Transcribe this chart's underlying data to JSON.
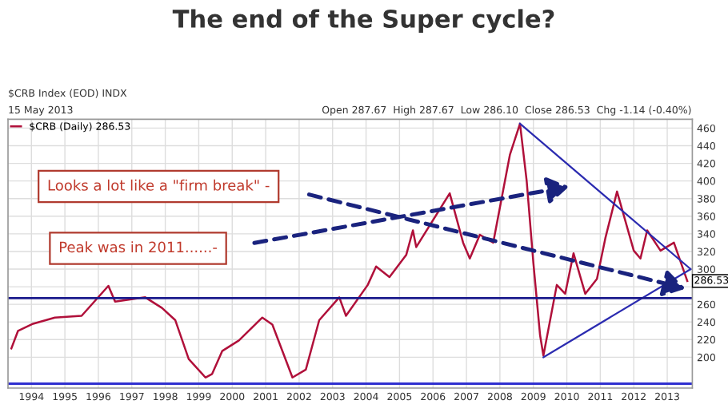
{
  "chart_data": {
    "type": "line",
    "title": "The end of the Super cycle?",
    "subtitle": "$CRB Index (EOD) INDX",
    "annotations": [
      "15 May 2013",
      "Open 287.67  High 287.67  Low 286.10  Close 286.53  Chg -1.14 (-0.40%)",
      "Looks a lot like a \"firm break\" -",
      "Peak was in 2011......-",
      {
        "text": "286.53",
        "x": 2013.6,
        "y": 286.53
      }
    ],
    "series": [
      {
        "name": "$CRB (Daily) 286.53",
        "color": "#b0103a",
        "x": [
          1993.4,
          1993.6,
          1994.05,
          1994.7,
          1995.5,
          1996.3,
          1996.5,
          1997.4,
          1997.9,
          1998.3,
          1998.7,
          1999.2,
          1999.4,
          1999.7,
          2000.2,
          2000.9,
          2001.2,
          2001.8,
          2002.2,
          2002.6,
          2003.2,
          2003.4,
          2004.05,
          2004.3,
          2004.7,
          2005.2,
          2005.4,
          2005.5,
          2006.5,
          2006.9,
          2007.1,
          2007.4,
          2007.8,
          2008.3,
          2008.6,
          2008.8,
          2009.0,
          2009.2,
          2009.3,
          2009.7,
          2009.95,
          2010.2,
          2010.55,
          2010.9,
          2011.15,
          2011.5,
          2012.0,
          2012.2,
          2012.4,
          2012.8,
          2013.2,
          2013.6
        ],
        "values": [
          210,
          230,
          238,
          245,
          247,
          281,
          263,
          268,
          256,
          242,
          198,
          177,
          181,
          207,
          219,
          245,
          237,
          177,
          186,
          242,
          268,
          247,
          282,
          303,
          291,
          316,
          344,
          325,
          386,
          330,
          312,
          339,
          330,
          430,
          465,
          400,
          307,
          225,
          202,
          282,
          272,
          318,
          272,
          289,
          335,
          388,
          321,
          312,
          344,
          321,
          330,
          286.53
        ]
      },
      {
        "type": "line",
        "color": "#2b2bb0",
        "x": [
          2008.6,
          2013.7
        ],
        "values": [
          465,
          300
        ]
      },
      {
        "type": "line",
        "color": "#2b2bb0",
        "x": [
          2009.3,
          2013.7
        ],
        "values": [
          200,
          300
        ]
      }
    ],
    "ref_lines": [
      {
        "axis": "y",
        "value": 267,
        "color": "#1a1a8c"
      },
      {
        "axis": "y",
        "value": 170,
        "color": "#3030d0"
      }
    ],
    "xlim": [
      1993.3,
      2013.75
    ],
    "ylim": [
      165,
      470
    ],
    "xticks": [
      1994,
      1995,
      1996,
      1997,
      1998,
      1999,
      2000,
      2001,
      2002,
      2003,
      2004,
      2005,
      2006,
      2007,
      2008,
      2009,
      2010,
      2011,
      2012,
      2013
    ],
    "yticks": [
      200,
      220,
      240,
      260,
      {
        "value": 280,
        "label": null
      },
      300,
      320,
      340,
      360,
      380,
      400,
      420,
      440,
      460
    ],
    "grid": true,
    "legend": "top left"
  }
}
